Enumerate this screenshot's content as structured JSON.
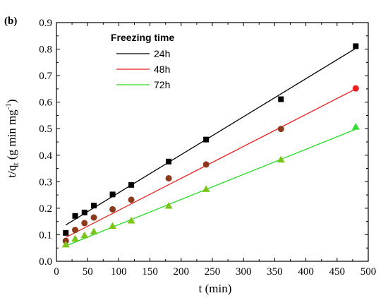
{
  "panel_label": "(b)",
  "chart_data": {
    "type": "scatter",
    "xlabel": "t (min)",
    "ylabel_main": "t/q",
    "ylabel_sub": "t",
    "ylabel_rest": " (g min mg",
    "ylabel_sup": "-1",
    "ylabel_end": ")",
    "xlim": [
      0,
      500
    ],
    "ylim": [
      0,
      0.9
    ],
    "xticks": [
      0,
      50,
      100,
      150,
      200,
      250,
      300,
      350,
      400,
      450,
      500
    ],
    "yticks": [
      0.0,
      0.1,
      0.2,
      0.3,
      0.4,
      0.5,
      0.6,
      0.7,
      0.8,
      0.9
    ],
    "ytick_labels": [
      "0.0",
      "0.1",
      "0.2",
      "0.3",
      "0.4",
      "0.5",
      "0.6",
      "0.7",
      "0.8",
      "0.9"
    ],
    "xtick_labels": [
      "0",
      "50",
      "100",
      "150",
      "200",
      "250",
      "300",
      "350",
      "400",
      "450",
      "500"
    ],
    "grid": false,
    "legend": {
      "title": "Freezing time",
      "placement": "top-left"
    },
    "series": [
      {
        "name": "24h",
        "color": "#000000",
        "marker": "square",
        "x": [
          15,
          30,
          45,
          60,
          90,
          120,
          180,
          240,
          360,
          480
        ],
        "y": [
          0.107,
          0.171,
          0.184,
          0.21,
          0.252,
          0.288,
          0.376,
          0.459,
          0.611,
          0.811
        ],
        "fit": [
          [
            15,
            0.137
          ],
          [
            480,
            0.803
          ]
        ]
      },
      {
        "name": "48h",
        "color": "#e8201f",
        "marker_color": "#8b3a1c",
        "marker": "circle",
        "x": [
          15,
          30,
          45,
          60,
          90,
          120,
          180,
          240,
          360,
          480
        ],
        "y": [
          0.077,
          0.118,
          0.144,
          0.165,
          0.196,
          0.232,
          0.313,
          0.365,
          0.499,
          0.652
        ],
        "fit": [
          [
            15,
            0.09
          ],
          [
            480,
            0.65
          ]
        ]
      },
      {
        "name": "72h",
        "color": "#22dd22",
        "marker_color": "#7cc41a",
        "marker": "triangle",
        "x": [
          15,
          30,
          45,
          60,
          90,
          120,
          180,
          240,
          360,
          480
        ],
        "y": [
          0.063,
          0.085,
          0.098,
          0.112,
          0.133,
          0.153,
          0.209,
          0.272,
          0.383,
          0.507
        ],
        "fit": [
          [
            15,
            0.058
          ],
          [
            480,
            0.498
          ]
        ]
      }
    ]
  }
}
